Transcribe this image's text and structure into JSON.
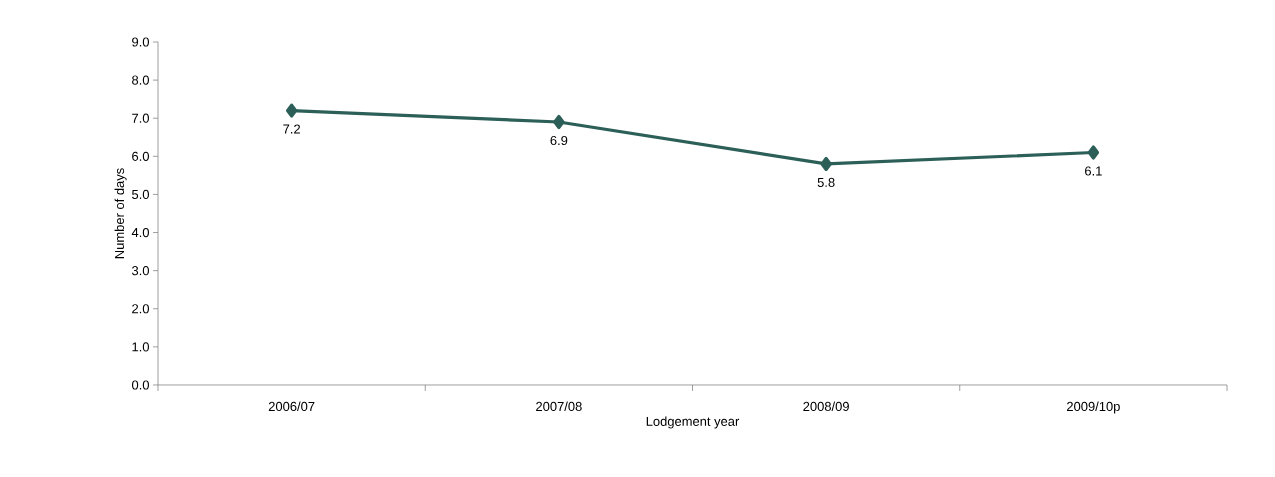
{
  "chart_data": {
    "type": "line",
    "xlabel": "Lodgement year",
    "ylabel": "Number of days",
    "categories": [
      "2006/07",
      "2007/08",
      "2008/09",
      "2009/10p"
    ],
    "series": [
      {
        "color": "#2b5f58",
        "values": [
          7.2,
          6.9,
          5.8,
          6.1
        ]
      }
    ],
    "ylim": [
      0,
      9
    ],
    "yticks": [
      {
        "value": 0,
        "label": "0.0"
      },
      {
        "value": 1,
        "label": "1.0"
      },
      {
        "value": 2,
        "label": "2.0"
      },
      {
        "value": 3,
        "label": "3.0"
      },
      {
        "value": 4,
        "label": "4.0"
      },
      {
        "value": 5,
        "label": "5.0"
      },
      {
        "value": 6,
        "label": "6.0"
      },
      {
        "value": 7,
        "label": "7.0"
      },
      {
        "value": 8,
        "label": "8.0"
      },
      {
        "value": 9,
        "label": "9.0"
      }
    ],
    "data_labels": true,
    "marker": "diamond",
    "line_style": "solid",
    "grid": false
  }
}
